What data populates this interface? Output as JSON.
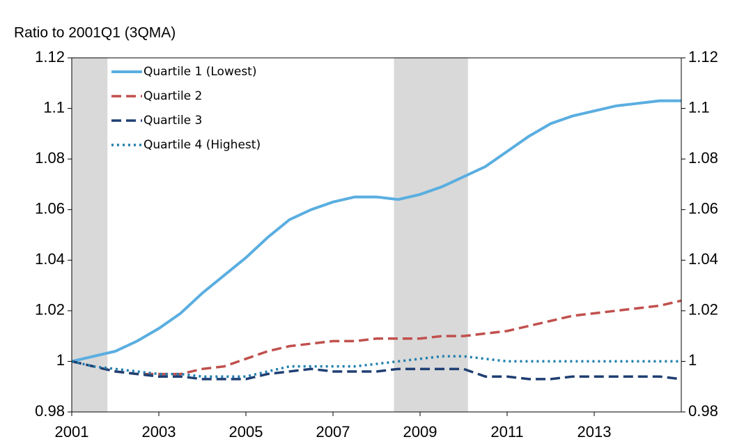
{
  "chart_data": {
    "type": "line",
    "title": "Ratio to 2001Q1 (3QMA)",
    "x": [
      2001,
      2001.5,
      2002,
      2002.5,
      2003,
      2003.5,
      2004,
      2004.5,
      2005,
      2005.5,
      2006,
      2006.5,
      2007,
      2007.5,
      2008,
      2008.5,
      2009,
      2009.5,
      2010,
      2010.5,
      2011,
      2011.5,
      2012,
      2012.5,
      2013,
      2013.5,
      2014,
      2014.5,
      2015
    ],
    "series": [
      {
        "name": "Quartile 1 (Lowest)",
        "color": "#5aaee0",
        "style": "solid",
        "values": [
          1.0,
          1.002,
          1.004,
          1.008,
          1.013,
          1.019,
          1.027,
          1.034,
          1.041,
          1.049,
          1.056,
          1.06,
          1.063,
          1.065,
          1.065,
          1.064,
          1.066,
          1.069,
          1.073,
          1.077,
          1.083,
          1.089,
          1.094,
          1.097,
          1.099,
          1.101,
          1.102,
          1.103,
          1.103
        ]
      },
      {
        "name": "Quartile 2",
        "color": "#c0504d",
        "style": "dashed",
        "values": [
          1.0,
          0.998,
          0.996,
          0.995,
          0.995,
          0.995,
          0.997,
          0.998,
          1.001,
          1.004,
          1.006,
          1.007,
          1.008,
          1.008,
          1.009,
          1.009,
          1.009,
          1.01,
          1.01,
          1.011,
          1.012,
          1.014,
          1.016,
          1.018,
          1.019,
          1.02,
          1.021,
          1.022,
          1.024
        ]
      },
      {
        "name": "Quartile 3",
        "color": "#1f3f73",
        "style": "dashed",
        "values": [
          1.0,
          0.998,
          0.996,
          0.995,
          0.994,
          0.994,
          0.993,
          0.993,
          0.993,
          0.995,
          0.996,
          0.997,
          0.996,
          0.996,
          0.996,
          0.997,
          0.997,
          0.997,
          0.997,
          0.994,
          0.994,
          0.993,
          0.993,
          0.994,
          0.994,
          0.994,
          0.994,
          0.994,
          0.993
        ]
      },
      {
        "name": "Quartile 4 (Highest)",
        "color": "#1f7fae",
        "style": "dotted",
        "values": [
          1.0,
          0.998,
          0.997,
          0.996,
          0.995,
          0.995,
          0.994,
          0.994,
          0.994,
          0.996,
          0.998,
          0.998,
          0.998,
          0.998,
          0.999,
          1.0,
          1.001,
          1.002,
          1.002,
          1.001,
          1.0,
          1.0,
          1.0,
          1.0,
          1.0,
          1.0,
          1.0,
          1.0,
          1.0
        ]
      }
    ],
    "shaded_periods": [
      [
        2001,
        2001.82
      ],
      [
        2008.4,
        2010.1
      ]
    ],
    "shade_color": "#d9d9d9",
    "xlim": [
      2001,
      2015
    ],
    "xticks": [
      2001,
      2003,
      2005,
      2007,
      2009,
      2011,
      2013
    ],
    "ylim": [
      0.98,
      1.12
    ],
    "yticks": [
      0.98,
      1,
      1.02,
      1.04,
      1.06,
      1.08,
      1.1,
      1.12
    ],
    "y2lim": [
      0.98,
      1.12
    ],
    "y2ticks": [
      0.98,
      1,
      1.02,
      1.04,
      1.06,
      1.08,
      1.1,
      1.12
    ],
    "legend": "upper left"
  }
}
